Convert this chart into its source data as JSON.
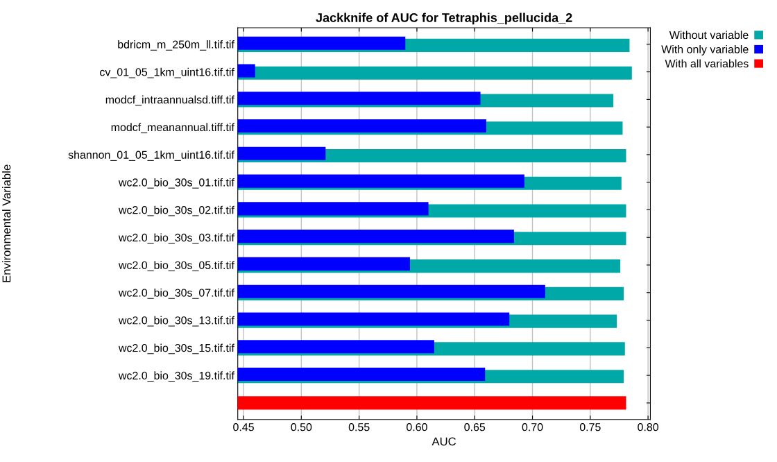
{
  "chart_data": {
    "type": "bar",
    "orientation": "horizontal",
    "title": "Jackknife of AUC for Tetraphis_pellucida_2",
    "xlabel": "AUC",
    "ylabel": "Environmental Variable",
    "categories": [
      "bdricm_m_250m_ll.tif.tif",
      "cv_01_05_1km_uint16.tif.tif",
      "modcf_intraannualsd.tiff.tif",
      "modcf_meanannual.tiff.tif",
      "shannon_01_05_1km_uint16.tif.tif",
      "wc2.0_bio_30s_01.tif.tif",
      "wc2.0_bio_30s_02.tif.tif",
      "wc2.0_bio_30s_03.tif.tif",
      "wc2.0_bio_30s_05.tif.tif",
      "wc2.0_bio_30s_07.tif.tif",
      "wc2.0_bio_30s_13.tif.tif",
      "wc2.0_bio_30s_15.tif.tif",
      "wc2.0_bio_30s_19.tif.tif",
      null
    ],
    "series": [
      {
        "name": "Without variable",
        "color": "#00a8a8",
        "values": [
          0.784,
          0.786,
          0.77,
          0.778,
          0.781,
          0.777,
          0.781,
          0.781,
          0.776,
          0.779,
          0.773,
          0.78,
          0.779,
          null
        ]
      },
      {
        "name": "With only variable",
        "color": "#0000ff",
        "values": [
          0.59,
          0.46,
          0.655,
          0.66,
          0.521,
          0.693,
          0.61,
          0.684,
          0.594,
          0.711,
          0.68,
          0.615,
          0.659,
          null
        ]
      },
      {
        "name": "With all variables",
        "color": "#ff0000",
        "values": [
          null,
          null,
          null,
          null,
          null,
          null,
          null,
          null,
          null,
          null,
          null,
          null,
          null,
          0.781
        ]
      }
    ],
    "xlim": [
      0.445,
      0.802
    ],
    "xticks": [
      0.45,
      {
        "value": 0.5,
        "label": "0.50"
      },
      0.55,
      {
        "value": 0.6,
        "label": "0.60"
      },
      0.65,
      {
        "value": 0.7,
        "label": "0.70"
      },
      0.75,
      {
        "value": 0.8,
        "label": "0.80"
      }
    ],
    "grid": "x",
    "legend": "top right"
  }
}
